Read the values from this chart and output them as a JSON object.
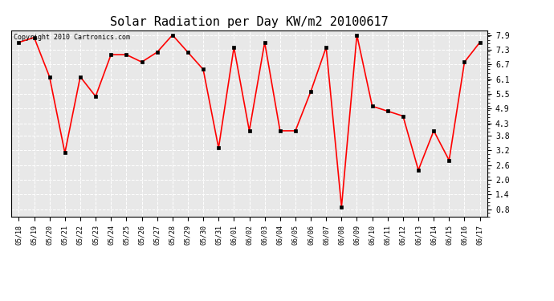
{
  "title": "Solar Radiation per Day KW/m2 20100617",
  "copyright_text": "Copyright 2010 Cartronics.com",
  "x_labels": [
    "05/18",
    "05/19",
    "05/20",
    "05/21",
    "05/22",
    "05/23",
    "05/24",
    "05/25",
    "05/26",
    "05/27",
    "05/28",
    "05/29",
    "05/30",
    "05/31",
    "06/01",
    "06/02",
    "06/03",
    "06/04",
    "06/05",
    "06/06",
    "06/07",
    "06/08",
    "06/09",
    "06/10",
    "06/11",
    "06/12",
    "06/13",
    "06/14",
    "06/15",
    "06/16",
    "06/17"
  ],
  "y_values": [
    7.6,
    7.8,
    6.2,
    3.1,
    6.2,
    5.4,
    7.1,
    7.1,
    6.8,
    7.2,
    7.9,
    7.2,
    6.5,
    3.3,
    7.4,
    4.0,
    7.6,
    4.0,
    4.0,
    5.6,
    7.4,
    0.9,
    7.9,
    5.0,
    4.8,
    4.6,
    2.4,
    4.0,
    2.8,
    6.8,
    7.6
  ],
  "y_ticks": [
    0.8,
    1.4,
    2.0,
    2.6,
    3.2,
    3.8,
    4.3,
    4.9,
    5.5,
    6.1,
    6.7,
    7.3,
    7.9
  ],
  "y_min": 0.5,
  "y_max": 8.1,
  "line_color": "red",
  "marker": "s",
  "marker_size": 2.5,
  "marker_color": "black",
  "background_color": "#ffffff",
  "plot_bg_color": "#e8e8e8",
  "grid_color": "#ffffff",
  "title_fontsize": 11,
  "tick_fontsize": 6,
  "copyright_fontsize": 6
}
